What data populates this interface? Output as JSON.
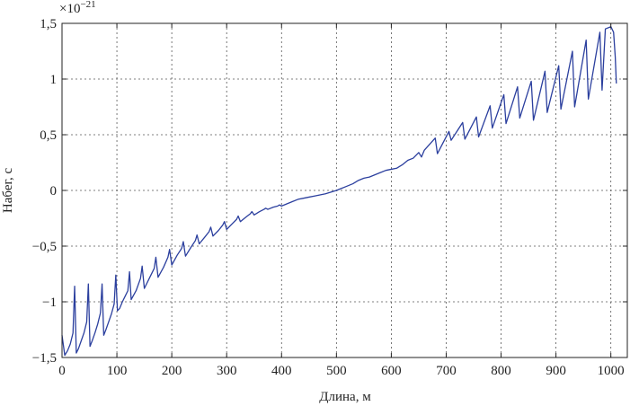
{
  "chart_data": {
    "type": "line",
    "title": "",
    "xlabel": "Длина, м",
    "ylabel": "Набег, с",
    "y_multiplier": "×10",
    "y_multiplier_exponent": "−21",
    "xlim": [
      0,
      1030
    ],
    "ylim": [
      -1.5,
      1.5
    ],
    "x_ticks": [
      0,
      100,
      200,
      300,
      400,
      500,
      600,
      700,
      800,
      900,
      1000
    ],
    "x_tick_labels": [
      "0",
      "100",
      "200",
      "300",
      "400",
      "500",
      "600",
      "700",
      "800",
      "900",
      "1000"
    ],
    "y_ticks": [
      -1.5,
      -1,
      -0.5,
      0,
      0.5,
      1,
      1.5
    ],
    "y_tick_labels": [
      "−1,5",
      "−1",
      "−0,5",
      "0",
      "0,5",
      "1",
      "1,5"
    ],
    "grid": true,
    "color": "#2b3f9e",
    "series": [
      {
        "x": [
          0,
          5,
          10,
          15,
          20,
          23,
          26,
          30,
          35,
          40,
          45,
          48,
          51,
          55,
          60,
          65,
          70,
          73,
          76,
          80,
          85,
          90,
          95,
          98,
          101,
          105,
          110,
          115,
          120,
          123,
          126,
          135,
          143,
          146,
          150,
          160,
          168,
          171,
          175,
          185,
          193,
          196,
          200,
          210,
          218,
          221,
          225,
          235,
          243,
          246,
          250,
          260,
          268,
          271,
          275,
          285,
          293,
          296,
          300,
          310,
          318,
          321,
          325,
          335,
          343,
          346,
          350,
          360,
          368,
          371,
          375,
          385,
          393,
          396,
          400,
          410,
          420,
          430,
          440,
          450,
          460,
          470,
          480,
          490,
          500,
          510,
          520,
          530,
          540,
          550,
          560,
          570,
          580,
          590,
          600,
          610,
          620,
          630,
          640,
          650,
          655,
          660,
          680,
          684,
          705,
          709,
          730,
          734,
          755,
          759,
          780,
          784,
          805,
          809,
          830,
          834,
          855,
          859,
          880,
          884,
          905,
          909,
          930,
          934,
          955,
          959,
          980,
          984,
          990,
          1000,
          1005,
          1008,
          1010
        ],
        "y": [
          -1.3,
          -1.48,
          -1.44,
          -1.38,
          -1.28,
          -0.86,
          -1.46,
          -1.42,
          -1.35,
          -1.28,
          -1.18,
          -0.84,
          -1.4,
          -1.35,
          -1.28,
          -1.2,
          -1.1,
          -0.84,
          -1.3,
          -1.25,
          -1.18,
          -1.11,
          -1.02,
          -0.76,
          -1.08,
          -1.06,
          -1.0,
          -0.95,
          -0.9,
          -0.73,
          -0.98,
          -0.9,
          -0.79,
          -0.68,
          -0.88,
          -0.78,
          -0.7,
          -0.6,
          -0.78,
          -0.69,
          -0.6,
          -0.53,
          -0.67,
          -0.58,
          -0.52,
          -0.46,
          -0.59,
          -0.51,
          -0.45,
          -0.4,
          -0.48,
          -0.42,
          -0.37,
          -0.33,
          -0.41,
          -0.36,
          -0.31,
          -0.28,
          -0.35,
          -0.3,
          -0.26,
          -0.23,
          -0.28,
          -0.24,
          -0.21,
          -0.19,
          -0.22,
          -0.19,
          -0.17,
          -0.16,
          -0.17,
          -0.15,
          -0.14,
          -0.13,
          -0.14,
          -0.12,
          -0.1,
          -0.08,
          -0.07,
          -0.06,
          -0.05,
          -0.04,
          -0.03,
          -0.015,
          0.0,
          0.02,
          0.04,
          0.06,
          0.09,
          0.11,
          0.12,
          0.14,
          0.16,
          0.18,
          0.19,
          0.2,
          0.23,
          0.27,
          0.29,
          0.34,
          0.3,
          0.36,
          0.47,
          0.33,
          0.53,
          0.45,
          0.61,
          0.46,
          0.66,
          0.48,
          0.76,
          0.56,
          0.86,
          0.6,
          0.93,
          0.65,
          0.98,
          0.63,
          1.07,
          0.7,
          1.12,
          0.73,
          1.25,
          0.75,
          1.35,
          0.82,
          1.42,
          0.9,
          1.45,
          1.47,
          1.42,
          1.2,
          0.96
        ]
      }
    ]
  }
}
